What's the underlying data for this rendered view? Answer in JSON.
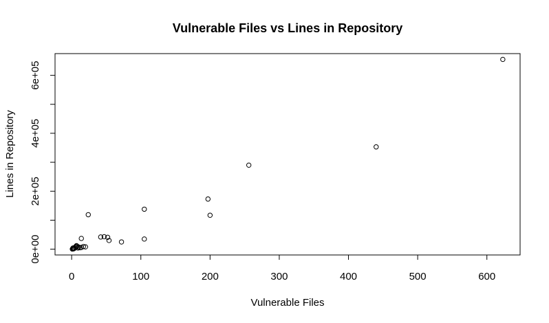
{
  "chart_data": {
    "type": "scatter",
    "title": "Vulnerable Files vs Lines in Repository",
    "xlabel": "Vulnerable Files",
    "ylabel": "Lines in Repository",
    "xlim": [
      -24,
      648
    ],
    "ylim": [
      -20000,
      675000
    ],
    "x_ticks": [
      0,
      100,
      200,
      300,
      400,
      500,
      600
    ],
    "x_tick_labels": [
      "0",
      "100",
      "200",
      "300",
      "400",
      "500",
      "600"
    ],
    "y_ticks": [
      0,
      100000,
      200000,
      300000,
      400000,
      500000,
      600000
    ],
    "y_tick_labels": [
      "0e+00",
      "",
      "2e+05",
      "",
      "4e+05",
      "",
      "6e+05"
    ],
    "grid": false,
    "legend": "none",
    "x": [
      623,
      440,
      256,
      197,
      200,
      105,
      105,
      72,
      54,
      52,
      47,
      42,
      24,
      14,
      20,
      17,
      12,
      10,
      8,
      6,
      5,
      4,
      3,
      2,
      1,
      2,
      3,
      7,
      9,
      14
    ],
    "y": [
      655000,
      353000,
      290000,
      173000,
      117000,
      138000,
      35000,
      25000,
      30000,
      41000,
      43000,
      42000,
      119000,
      37000,
      8000,
      9000,
      5000,
      7000,
      10000,
      9000,
      6000,
      3000,
      1500,
      1000,
      500,
      4000,
      2000,
      12000,
      4000,
      6000
    ]
  }
}
